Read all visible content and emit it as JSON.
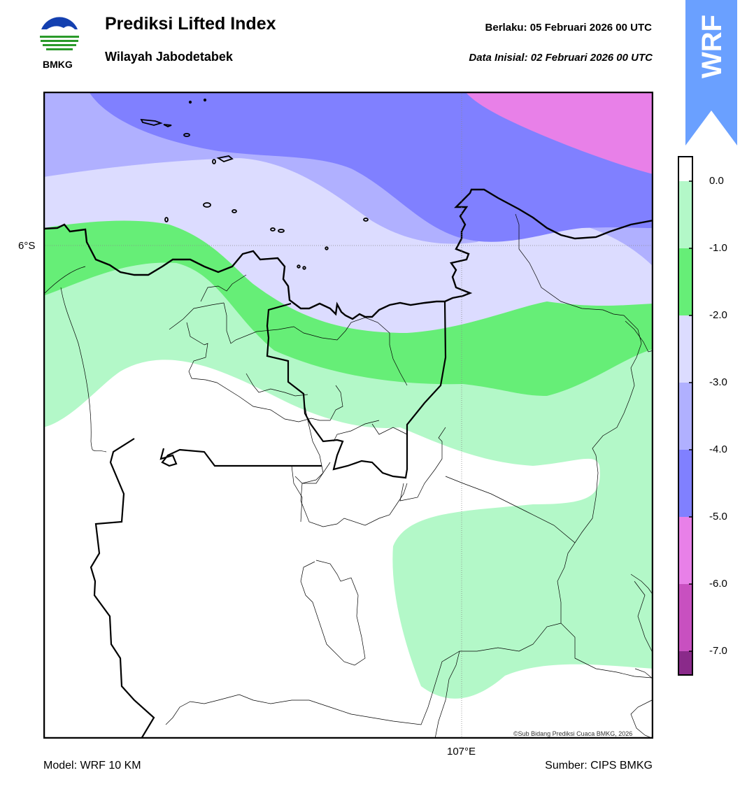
{
  "header": {
    "title": "Prediksi Lifted Index",
    "subtitle": "Wilayah Jabodetabek",
    "valid_time": "Berlaku:  05 Februari 2026 00 UTC",
    "init_time": "Data Inisial:  02 Februari 2026 00 UTC"
  },
  "logo": {
    "text": "BMKG",
    "icon": "bmkg-logo"
  },
  "badge": {
    "text": "WRF",
    "color": "#6aa0ff"
  },
  "map": {
    "lat_label": "6°S",
    "lon_label": "107°E",
    "copyright": "©Sub Bidang Prediksi Cuaca BMKG, 2026"
  },
  "colorbar": {
    "ticks": [
      "0.0",
      "-1.0",
      "-2.0",
      "-3.0",
      "-4.0",
      "-5.0",
      "-6.0",
      "-7.0"
    ],
    "colors": [
      "#b3f8c8",
      "#66ee77",
      "#dcdcff",
      "#b0b0ff",
      "#8080ff",
      "#e880e8",
      "#c850c0",
      "#8a2a8a"
    ]
  },
  "footer": {
    "model": "Model: WRF 10 KM",
    "source": "Sumber: CIPS BMKG"
  }
}
